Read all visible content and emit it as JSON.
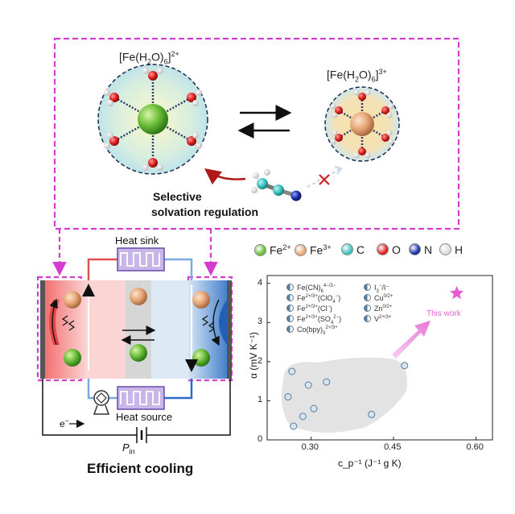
{
  "top_panel": {
    "left_complex": {
      "base": "[Fe(H",
      "sub1": "2",
      "mid": "O)",
      "sub2": "6",
      "end": "]",
      "sup": "2+"
    },
    "right_complex": {
      "base": "[Fe(H",
      "sub1": "2",
      "mid": "O)",
      "sub2": "6",
      "end": "]",
      "sup": "3+"
    },
    "regulation_label_line1": "Selective",
    "regulation_label_line2": "solvation  regulation"
  },
  "legend": {
    "items": [
      {
        "label": "Fe",
        "sup": "2+",
        "color": "#6cbf3a"
      },
      {
        "label": "Fe",
        "sup": "3+",
        "color": "#e8a878"
      },
      {
        "label": "C",
        "sup": "",
        "color": "#3cc4c0"
      },
      {
        "label": "O",
        "sup": "",
        "color": "#e02020"
      },
      {
        "label": "N",
        "sup": "",
        "color": "#1a2fa8"
      },
      {
        "label": "H",
        "sup": "",
        "color": "#dddddd"
      }
    ]
  },
  "device": {
    "heat_sink": "Heat sink",
    "heat_source": "Heat source",
    "electron": "e",
    "electron_sup": "−",
    "power_p": "P",
    "power_sub": "in",
    "caption": "Efficient cooling"
  },
  "chart_data": {
    "type": "scatter",
    "ylabel": "α (mV K⁻¹)",
    "xlabel": "c_p⁻¹ (J⁻¹ g K)",
    "x_ticks": [
      "0.30",
      "0.45",
      "0.60"
    ],
    "y_ticks": [
      "0",
      "1",
      "2",
      "3",
      "4"
    ],
    "xlim": [
      0.22,
      0.63
    ],
    "ylim": [
      0,
      4.2
    ],
    "legend_left": [
      {
        "label": "Fe(CN)",
        "sub": "6",
        "sup": "4−/3−"
      },
      {
        "label": "Fe",
        "sup": "2+/3+",
        "paren": "(ClO",
        "sub2": "4",
        "sup2": "−",
        "close": ")"
      },
      {
        "label": "Fe",
        "sup": "2+/3+",
        "paren": "(Cl",
        "sup2": "−",
        "close": ")"
      },
      {
        "label": "Fe",
        "sup": "2+/3+",
        "paren": "(SO",
        "sub2": "4",
        "sup2": "2−",
        "close": ")"
      },
      {
        "label": "Co(bpy)",
        "sub": "3",
        "sup": "2+/3+"
      }
    ],
    "legend_right": [
      {
        "label": "I",
        "sub": "3",
        "sup": "−",
        "tail": "/I⁻"
      },
      {
        "label": "Cu",
        "sup": "0/2+"
      },
      {
        "label": "Zn",
        "sup": "0/2+"
      },
      {
        "label": "V",
        "sup": "2+/3+"
      }
    ],
    "points": [
      {
        "x": 0.265,
        "y": 1.75
      },
      {
        "x": 0.258,
        "y": 1.1
      },
      {
        "x": 0.268,
        "y": 0.35
      },
      {
        "x": 0.285,
        "y": 0.6
      },
      {
        "x": 0.295,
        "y": 1.4
      },
      {
        "x": 0.305,
        "y": 0.8
      },
      {
        "x": 0.328,
        "y": 1.48
      },
      {
        "x": 0.41,
        "y": 0.65
      },
      {
        "x": 0.47,
        "y": 1.9
      }
    ],
    "this_work": {
      "x": 0.565,
      "y": 3.75,
      "label": "This work",
      "color": "#e35fd0"
    }
  }
}
